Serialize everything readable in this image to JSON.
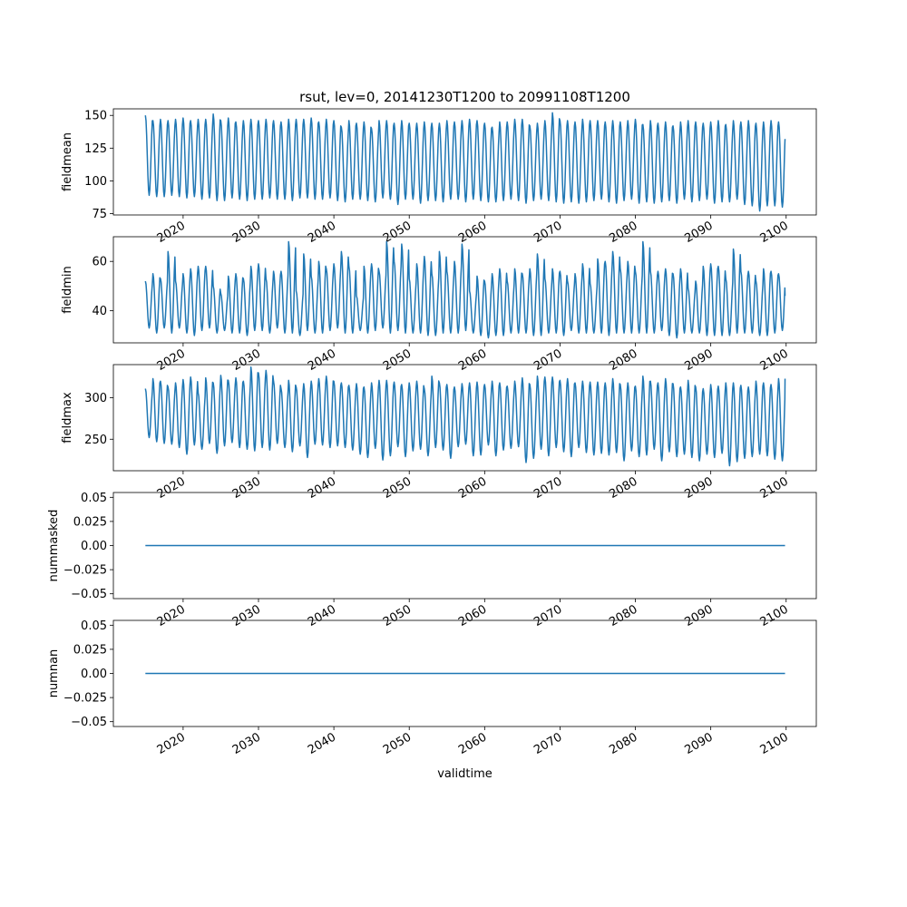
{
  "figure": {
    "title": "rsut, lev=0, 20141230T1200 to 20991108T1200",
    "xlabel": "validtime"
  },
  "chart_data": [
    {
      "type": "line",
      "ylabel": "fieldmean",
      "x_range": [
        "2014-12-30T12:00",
        "2099-11-08T12:00"
      ],
      "xlim": [
        "2010-10-01",
        "2104-01-01"
      ],
      "ylim": [
        74,
        155
      ],
      "yticks": [
        75,
        100,
        125,
        150
      ],
      "ytick_labels": [
        "75",
        "100",
        "125",
        "150"
      ],
      "series": [
        {
          "color": "#1f77b4",
          "pattern": "seasonal",
          "annual_max": [
            150,
            146,
            147,
            146,
            147,
            148,
            146,
            147,
            147,
            151,
            146,
            148,
            145,
            146,
            147,
            146,
            147,
            146,
            145,
            147,
            147,
            147,
            148,
            145,
            147,
            146,
            141,
            146,
            144,
            145,
            140,
            146,
            146,
            144,
            146,
            144,
            144,
            145,
            144,
            144,
            146,
            145,
            146,
            147,
            146,
            144,
            141,
            145,
            145,
            147,
            147,
            142,
            144,
            146,
            152,
            146,
            146,
            145,
            147,
            146,
            146,
            145,
            146,
            145,
            146,
            147,
            143,
            146,
            144,
            145,
            142,
            145,
            146,
            145,
            144,
            145,
            146,
            143,
            146,
            145,
            146,
            144,
            145,
            146,
            145
          ],
          "annual_min": [
            89,
            88,
            88,
            89,
            88,
            87,
            88,
            86,
            87,
            85,
            85,
            87,
            86,
            85,
            86,
            86,
            87,
            86,
            86,
            85,
            87,
            87,
            86,
            86,
            87,
            85,
            84,
            86,
            86,
            85,
            84,
            87,
            86,
            82,
            86,
            86,
            83,
            85,
            85,
            84,
            86,
            86,
            84,
            86,
            85,
            84,
            84,
            85,
            86,
            85,
            83,
            85,
            86,
            85,
            84,
            83,
            84,
            83,
            84,
            85,
            86,
            84,
            83,
            85,
            86,
            83,
            84,
            83,
            84,
            85,
            83,
            86,
            84,
            85,
            86,
            83,
            84,
            84,
            86,
            82,
            81,
            77,
            81,
            81,
            80
          ],
          "end_value": 132
        }
      ]
    },
    {
      "type": "line",
      "ylabel": "fieldmin",
      "x_range": [
        "2014-12-30T12:00",
        "2099-11-08T12:00"
      ],
      "xlim": [
        "2010-10-01",
        "2104-01-01"
      ],
      "ylim": [
        27,
        70
      ],
      "yticks": [
        40,
        60
      ],
      "ytick_labels": [
        "40",
        "60"
      ],
      "series": [
        {
          "color": "#1f77b4",
          "pattern": "seasonal",
          "annual_max": [
            52,
            55,
            53,
            64,
            52,
            55,
            57,
            58,
            58,
            50,
            47,
            54,
            55,
            53,
            58,
            59,
            53,
            56,
            56,
            68,
            48,
            63,
            54,
            60,
            57,
            59,
            64,
            58,
            46,
            58,
            59,
            56,
            68,
            60,
            67,
            53,
            59,
            62,
            55,
            64,
            56,
            60,
            67,
            48,
            54,
            52,
            55,
            57,
            52,
            57,
            55,
            57,
            63,
            53,
            57,
            56,
            52,
            55,
            59,
            51,
            61,
            60,
            64,
            57,
            60,
            56,
            68,
            56,
            56,
            57,
            55,
            57,
            49,
            52,
            58,
            59,
            58,
            53,
            65,
            56,
            56,
            52,
            57,
            56,
            55
          ],
          "annual_min": [
            33,
            31,
            33,
            31,
            33,
            31,
            30,
            32,
            33,
            31,
            32,
            31,
            31,
            30,
            32,
            32,
            31,
            33,
            31,
            31,
            30,
            32,
            31,
            31,
            32,
            33,
            31,
            31,
            32,
            31,
            32,
            33,
            31,
            32,
            31,
            31,
            31,
            30,
            30,
            31,
            31,
            31,
            32,
            31,
            30,
            29,
            30,
            30,
            31,
            31,
            31,
            30,
            30,
            31,
            31,
            30,
            32,
            31,
            31,
            31,
            31,
            30,
            31,
            31,
            31,
            31,
            31,
            31,
            32,
            30,
            29,
            31,
            31,
            31,
            30,
            30,
            30,
            30,
            31,
            31,
            31,
            30,
            30,
            31,
            32
          ],
          "end_value": 46
        }
      ]
    },
    {
      "type": "line",
      "ylabel": "fieldmax",
      "x_range": [
        "2014-12-30T12:00",
        "2099-11-08T12:00"
      ],
      "xlim": [
        "2010-10-01",
        "2104-01-01"
      ],
      "ylim": [
        212,
        340
      ],
      "yticks": [
        250,
        300
      ],
      "ytick_labels": [
        "250",
        "300"
      ],
      "series": [
        {
          "color": "#1f77b4",
          "pattern": "seasonal",
          "annual_max": [
            311,
            323,
            320,
            313,
            318,
            322,
            325,
            306,
            324,
            318,
            327,
            321,
            324,
            320,
            337,
            330,
            333,
            320,
            311,
            321,
            313,
            317,
            320,
            323,
            326,
            320,
            318,
            315,
            317,
            313,
            318,
            321,
            321,
            319,
            316,
            318,
            320,
            311,
            326,
            318,
            316,
            313,
            317,
            318,
            319,
            316,
            320,
            318,
            314,
            320,
            324,
            316,
            326,
            325,
            325,
            321,
            323,
            318,
            320,
            319,
            319,
            318,
            323,
            316,
            318,
            314,
            326,
            320,
            318,
            323,
            317,
            313,
            321,
            313,
            311,
            316,
            314,
            318,
            318,
            315,
            313,
            320,
            318,
            316,
            323
          ],
          "annual_min": [
            252,
            247,
            245,
            244,
            240,
            232,
            243,
            238,
            245,
            233,
            242,
            246,
            240,
            238,
            236,
            240,
            237,
            245,
            240,
            235,
            242,
            228,
            244,
            243,
            240,
            242,
            240,
            237,
            232,
            228,
            239,
            225,
            230,
            241,
            229,
            236,
            238,
            230,
            240,
            237,
            227,
            241,
            244,
            230,
            231,
            243,
            230,
            237,
            239,
            241,
            222,
            227,
            238,
            230,
            240,
            235,
            229,
            240,
            234,
            231,
            233,
            231,
            234,
            224,
            236,
            229,
            231,
            238,
            224,
            235,
            229,
            232,
            228,
            224,
            232,
            228,
            233,
            218,
            223,
            227,
            229,
            232,
            230,
            226,
            224
          ],
          "end_value": 323
        }
      ]
    },
    {
      "type": "line",
      "ylabel": "nummasked",
      "x_range": [
        "2014-12-30T12:00",
        "2099-11-08T12:00"
      ],
      "xlim": [
        "2010-10-01",
        "2104-01-01"
      ],
      "ylim": [
        -0.055,
        0.055
      ],
      "yticks": [
        -0.05,
        -0.025,
        0,
        0.025,
        0.05
      ],
      "ytick_labels": [
        "−0.05",
        "−0.025",
        "0.00",
        "0.025",
        "0.05"
      ],
      "series": [
        {
          "color": "#1f77b4",
          "pattern": "constant",
          "value": 0
        }
      ]
    },
    {
      "type": "line",
      "ylabel": "numnan",
      "x_range": [
        "2014-12-30T12:00",
        "2099-11-08T12:00"
      ],
      "xlim": [
        "2010-10-01",
        "2104-01-01"
      ],
      "ylim": [
        -0.055,
        0.055
      ],
      "yticks": [
        -0.05,
        -0.025,
        0,
        0.025,
        0.05
      ],
      "ytick_labels": [
        "−0.05",
        "−0.025",
        "0.00",
        "0.025",
        "0.05"
      ],
      "series": [
        {
          "color": "#1f77b4",
          "pattern": "constant",
          "value": 0
        }
      ]
    }
  ],
  "xticks": {
    "years": [
      2020,
      2030,
      2040,
      2050,
      2060,
      2070,
      2080,
      2090,
      2100
    ],
    "labels": [
      "2020",
      "2030",
      "2040",
      "2050",
      "2060",
      "2070",
      "2080",
      "2090",
      "2100"
    ]
  }
}
